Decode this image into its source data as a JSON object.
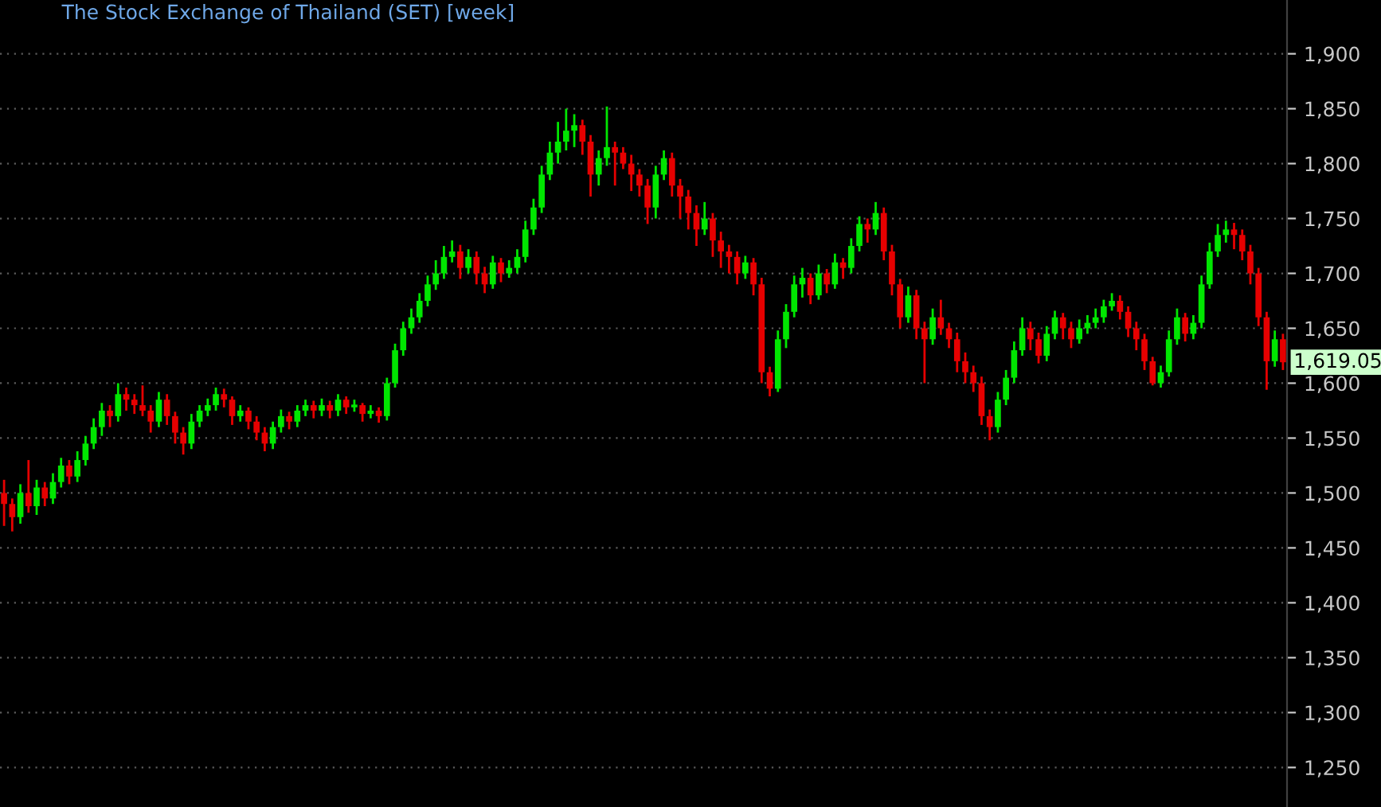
{
  "chart_data": {
    "type": "candlestick",
    "title": "The Stock Exchange of Thailand (SET) [week]",
    "categories": [
      null,
      null,
      null,
      null,
      null,
      null,
      null,
      null,
      null,
      null,
      null,
      null,
      null,
      null,
      null,
      null,
      null,
      null,
      null,
      null,
      null,
      null,
      null,
      null,
      null,
      null,
      null,
      null,
      null,
      null,
      null,
      null,
      null,
      null,
      null,
      null,
      null,
      null,
      null,
      null,
      null,
      null,
      null,
      null,
      null,
      null,
      null,
      null,
      null,
      null,
      null,
      null,
      null,
      null,
      null,
      null,
      null,
      null,
      null,
      null,
      null,
      null,
      null,
      null,
      null,
      null,
      null,
      null,
      null,
      null,
      null,
      null,
      null,
      null,
      null,
      null,
      null,
      null,
      null,
      null,
      null,
      null,
      null,
      null,
      null,
      null,
      null,
      null,
      null,
      null,
      null,
      null,
      null,
      null,
      null,
      null,
      null,
      null,
      null,
      null,
      null,
      null,
      null,
      null,
      null,
      null,
      null,
      null,
      null,
      null,
      null,
      null,
      null,
      null,
      null,
      null,
      null,
      null,
      null,
      null,
      null,
      null,
      null,
      null,
      null,
      null,
      null,
      null,
      null,
      null,
      null,
      null,
      null,
      null,
      null,
      null,
      null,
      null,
      null,
      null,
      null,
      null,
      null,
      null,
      null,
      null,
      null,
      null,
      null,
      null,
      null,
      null,
      null,
      null,
      null,
      null,
      null,
      null
    ],
    "ohlc": [
      [
        1500,
        1512,
        1470,
        1490
      ],
      [
        1490,
        1495,
        1465,
        1478
      ],
      [
        1478,
        1508,
        1472,
        1500
      ],
      [
        1500,
        1530,
        1482,
        1488
      ],
      [
        1488,
        1512,
        1480,
        1505
      ],
      [
        1505,
        1510,
        1488,
        1495
      ],
      [
        1495,
        1518,
        1490,
        1510
      ],
      [
        1510,
        1532,
        1505,
        1525
      ],
      [
        1525,
        1530,
        1508,
        1515
      ],
      [
        1515,
        1538,
        1510,
        1530
      ],
      [
        1530,
        1552,
        1525,
        1545
      ],
      [
        1545,
        1568,
        1540,
        1560
      ],
      [
        1560,
        1582,
        1552,
        1575
      ],
      [
        1575,
        1580,
        1560,
        1570
      ],
      [
        1570,
        1600,
        1565,
        1590
      ],
      [
        1590,
        1596,
        1575,
        1585
      ],
      [
        1585,
        1590,
        1572,
        1580
      ],
      [
        1580,
        1598,
        1570,
        1575
      ],
      [
        1575,
        1580,
        1555,
        1565
      ],
      [
        1565,
        1592,
        1560,
        1585
      ],
      [
        1585,
        1590,
        1562,
        1570
      ],
      [
        1570,
        1574,
        1545,
        1555
      ],
      [
        1555,
        1560,
        1535,
        1545
      ],
      [
        1545,
        1572,
        1540,
        1565
      ],
      [
        1565,
        1580,
        1560,
        1575
      ],
      [
        1575,
        1586,
        1570,
        1580
      ],
      [
        1580,
        1596,
        1575,
        1590
      ],
      [
        1590,
        1595,
        1578,
        1585
      ],
      [
        1585,
        1588,
        1562,
        1570
      ],
      [
        1570,
        1580,
        1565,
        1575
      ],
      [
        1575,
        1578,
        1558,
        1565
      ],
      [
        1565,
        1570,
        1548,
        1555
      ],
      [
        1555,
        1560,
        1538,
        1545
      ],
      [
        1545,
        1565,
        1540,
        1560
      ],
      [
        1560,
        1576,
        1555,
        1570
      ],
      [
        1570,
        1574,
        1558,
        1565
      ],
      [
        1565,
        1580,
        1560,
        1575
      ],
      [
        1575,
        1585,
        1570,
        1580
      ],
      [
        1580,
        1584,
        1568,
        1575
      ],
      [
        1575,
        1586,
        1570,
        1580
      ],
      [
        1580,
        1584,
        1568,
        1575
      ],
      [
        1575,
        1590,
        1570,
        1585
      ],
      [
        1585,
        1588,
        1572,
        1578
      ],
      [
        1578,
        1585,
        1574,
        1580
      ],
      [
        1580,
        1582,
        1565,
        1572
      ],
      [
        1572,
        1580,
        1568,
        1575
      ],
      [
        1575,
        1578,
        1564,
        1570
      ],
      [
        1570,
        1605,
        1566,
        1600
      ],
      [
        1600,
        1636,
        1596,
        1630
      ],
      [
        1630,
        1656,
        1625,
        1650
      ],
      [
        1650,
        1668,
        1645,
        1660
      ],
      [
        1660,
        1682,
        1655,
        1675
      ],
      [
        1675,
        1698,
        1670,
        1690
      ],
      [
        1690,
        1712,
        1685,
        1700
      ],
      [
        1700,
        1725,
        1695,
        1715
      ],
      [
        1715,
        1730,
        1710,
        1720
      ],
      [
        1720,
        1726,
        1695,
        1705
      ],
      [
        1705,
        1722,
        1700,
        1715
      ],
      [
        1715,
        1720,
        1690,
        1700
      ],
      [
        1700,
        1706,
        1682,
        1690
      ],
      [
        1690,
        1716,
        1686,
        1710
      ],
      [
        1710,
        1714,
        1692,
        1700
      ],
      [
        1700,
        1712,
        1696,
        1705
      ],
      [
        1705,
        1722,
        1700,
        1715
      ],
      [
        1715,
        1748,
        1710,
        1740
      ],
      [
        1740,
        1768,
        1735,
        1760
      ],
      [
        1760,
        1798,
        1755,
        1790
      ],
      [
        1790,
        1820,
        1785,
        1810
      ],
      [
        1810,
        1838,
        1800,
        1820
      ],
      [
        1820,
        1850,
        1812,
        1830
      ],
      [
        1830,
        1845,
        1815,
        1835
      ],
      [
        1835,
        1840,
        1808,
        1820
      ],
      [
        1820,
        1826,
        1770,
        1790
      ],
      [
        1790,
        1812,
        1780,
        1805
      ],
      [
        1805,
        1852,
        1798,
        1815
      ],
      [
        1815,
        1820,
        1780,
        1810
      ],
      [
        1810,
        1815,
        1795,
        1800
      ],
      [
        1800,
        1808,
        1775,
        1790
      ],
      [
        1790,
        1795,
        1770,
        1780
      ],
      [
        1780,
        1786,
        1745,
        1760
      ],
      [
        1760,
        1798,
        1750,
        1790
      ],
      [
        1790,
        1812,
        1785,
        1805
      ],
      [
        1805,
        1810,
        1770,
        1780
      ],
      [
        1780,
        1786,
        1750,
        1770
      ],
      [
        1770,
        1776,
        1740,
        1755
      ],
      [
        1755,
        1762,
        1725,
        1740
      ],
      [
        1740,
        1765,
        1735,
        1750
      ],
      [
        1750,
        1755,
        1715,
        1730
      ],
      [
        1730,
        1738,
        1705,
        1720
      ],
      [
        1720,
        1726,
        1700,
        1715
      ],
      [
        1715,
        1720,
        1690,
        1700
      ],
      [
        1700,
        1716,
        1695,
        1710
      ],
      [
        1710,
        1714,
        1680,
        1690
      ],
      [
        1690,
        1696,
        1600,
        1610
      ],
      [
        1610,
        1615,
        1588,
        1595
      ],
      [
        1595,
        1648,
        1592,
        1640
      ],
      [
        1640,
        1672,
        1632,
        1665
      ],
      [
        1665,
        1698,
        1660,
        1690
      ],
      [
        1690,
        1705,
        1678,
        1696
      ],
      [
        1696,
        1700,
        1672,
        1680
      ],
      [
        1680,
        1708,
        1676,
        1700
      ],
      [
        1700,
        1704,
        1682,
        1690
      ],
      [
        1690,
        1718,
        1686,
        1710
      ],
      [
        1710,
        1714,
        1695,
        1705
      ],
      [
        1705,
        1732,
        1700,
        1725
      ],
      [
        1725,
        1752,
        1720,
        1745
      ],
      [
        1745,
        1750,
        1728,
        1740
      ],
      [
        1740,
        1765,
        1735,
        1755
      ],
      [
        1755,
        1760,
        1712,
        1720
      ],
      [
        1720,
        1726,
        1680,
        1690
      ],
      [
        1690,
        1695,
        1650,
        1660
      ],
      [
        1660,
        1688,
        1655,
        1680
      ],
      [
        1680,
        1685,
        1640,
        1650
      ],
      [
        1650,
        1656,
        1600,
        1640
      ],
      [
        1640,
        1668,
        1635,
        1660
      ],
      [
        1660,
        1676,
        1644,
        1650
      ],
      [
        1650,
        1655,
        1632,
        1640
      ],
      [
        1640,
        1646,
        1610,
        1620
      ],
      [
        1620,
        1628,
        1600,
        1610
      ],
      [
        1610,
        1616,
        1592,
        1600
      ],
      [
        1600,
        1606,
        1562,
        1570
      ],
      [
        1570,
        1576,
        1548,
        1560
      ],
      [
        1560,
        1592,
        1555,
        1585
      ],
      [
        1585,
        1612,
        1580,
        1605
      ],
      [
        1605,
        1638,
        1600,
        1630
      ],
      [
        1630,
        1660,
        1625,
        1650
      ],
      [
        1650,
        1656,
        1630,
        1640
      ],
      [
        1640,
        1646,
        1618,
        1625
      ],
      [
        1625,
        1652,
        1620,
        1645
      ],
      [
        1645,
        1666,
        1640,
        1660
      ],
      [
        1660,
        1664,
        1640,
        1650
      ],
      [
        1650,
        1656,
        1632,
        1640
      ],
      [
        1640,
        1658,
        1636,
        1650
      ],
      [
        1650,
        1662,
        1645,
        1655
      ],
      [
        1655,
        1668,
        1650,
        1660
      ],
      [
        1660,
        1676,
        1655,
        1670
      ],
      [
        1670,
        1682,
        1666,
        1675
      ],
      [
        1675,
        1680,
        1658,
        1665
      ],
      [
        1665,
        1670,
        1642,
        1650
      ],
      [
        1650,
        1656,
        1630,
        1640
      ],
      [
        1640,
        1645,
        1612,
        1620
      ],
      [
        1620,
        1624,
        1598,
        1600
      ],
      [
        1600,
        1616,
        1596,
        1610
      ],
      [
        1610,
        1648,
        1606,
        1640
      ],
      [
        1640,
        1668,
        1635,
        1660
      ],
      [
        1660,
        1664,
        1638,
        1645
      ],
      [
        1645,
        1662,
        1640,
        1655
      ],
      [
        1655,
        1698,
        1650,
        1690
      ],
      [
        1690,
        1728,
        1686,
        1720
      ],
      [
        1720,
        1745,
        1715,
        1735
      ],
      [
        1735,
        1748,
        1728,
        1740
      ],
      [
        1740,
        1746,
        1722,
        1735
      ],
      [
        1735,
        1740,
        1712,
        1720
      ],
      [
        1720,
        1726,
        1690,
        1700
      ],
      [
        1700,
        1705,
        1652,
        1660
      ],
      [
        1660,
        1665,
        1594,
        1620
      ],
      [
        1620,
        1648,
        1615,
        1640
      ],
      [
        1640,
        1645,
        1612,
        1619.05
      ]
    ],
    "colors": [
      "#e60000",
      "#e60000",
      "#00e600",
      "#e60000",
      "#00e600",
      "#e60000",
      "#00e600",
      "#00e600",
      "#e60000",
      "#00e600",
      "#00e600",
      "#00e600",
      "#00e600",
      "#e60000",
      "#00e600",
      "#e60000",
      "#e60000",
      "#e60000",
      "#e60000",
      "#00e600",
      "#e60000",
      "#e60000",
      "#e60000",
      "#00e600",
      "#00e600",
      "#00e600",
      "#00e600",
      "#e60000",
      "#e60000",
      "#00e600",
      "#e60000",
      "#e60000",
      "#e60000",
      "#00e600",
      "#00e600",
      "#e60000",
      "#00e600",
      "#00e600",
      "#e60000",
      "#00e600",
      "#e60000",
      "#00e600",
      "#e60000",
      "#00e600",
      "#e60000",
      "#00e600",
      "#e60000",
      "#00e600",
      "#00e600",
      "#00e600",
      "#00e600",
      "#00e600",
      "#00e600",
      "#00e600",
      "#00e600",
      "#00e600",
      "#e60000",
      "#00e600",
      "#e60000",
      "#e60000",
      "#00e600",
      "#e60000",
      "#00e600",
      "#00e600",
      "#00e600",
      "#00e600",
      "#00e600",
      "#00e600",
      "#00e600",
      "#00e600",
      "#00e600",
      "#e60000",
      "#e60000",
      "#00e600",
      "#00e600",
      "#e60000",
      "#e60000",
      "#e60000",
      "#e60000",
      "#e60000",
      "#00e600",
      "#00e600",
      "#e60000",
      "#e60000",
      "#e60000",
      "#e60000",
      "#00e600",
      "#e60000",
      "#e60000",
      "#e60000",
      "#e60000",
      "#00e600",
      "#e60000",
      "#e60000",
      "#e60000",
      "#00e600",
      "#00e600",
      "#00e600",
      "#00e600",
      "#e60000",
      "#00e600",
      "#e60000",
      "#00e600",
      "#e60000",
      "#00e600",
      "#00e600",
      "#e60000",
      "#00e600",
      "#e60000",
      "#e60000",
      "#e60000",
      "#00e600",
      "#e60000",
      "#e60000",
      "#00e600",
      "#e60000",
      "#e60000",
      "#e60000",
      "#e60000",
      "#e60000",
      "#e60000",
      "#e60000",
      "#00e600",
      "#00e600",
      "#00e600",
      "#00e600",
      "#e60000",
      "#e60000",
      "#00e600",
      "#00e600",
      "#e60000",
      "#e60000",
      "#00e600",
      "#00e600",
      "#00e600",
      "#00e600",
      "#00e600",
      "#e60000",
      "#e60000",
      "#e60000",
      "#e60000",
      "#e60000",
      "#00e600",
      "#00e600",
      "#00e600",
      "#e60000",
      "#00e600",
      "#00e600",
      "#00e600",
      "#00e600",
      "#00e600",
      "#e60000",
      "#e60000",
      "#e60000",
      "#e60000",
      "#e60000",
      "#00e600",
      "#e60000"
    ],
    "ylim": [
      1214,
      1949
    ],
    "yticks": [
      {
        "value": 1250,
        "label": "1,250"
      },
      {
        "value": 1300,
        "label": "1,300"
      },
      {
        "value": 1350,
        "label": "1,350"
      },
      {
        "value": 1400,
        "label": "1,400"
      },
      {
        "value": 1450,
        "label": "1,450"
      },
      {
        "value": 1500,
        "label": "1,500"
      },
      {
        "value": 1550,
        "label": "1,550"
      },
      {
        "value": 1600,
        "label": "1,600"
      },
      {
        "value": 1650,
        "label": "1,650"
      },
      {
        "value": 1700,
        "label": "1,700"
      },
      {
        "value": 1750,
        "label": "1,750"
      },
      {
        "value": 1800,
        "label": "1,800"
      },
      {
        "value": 1850,
        "label": "1,850"
      },
      {
        "value": 1900,
        "label": "1,900"
      }
    ],
    "tick_labels": "y",
    "grid": "y",
    "annotations": [
      "1,619.05"
    ]
  }
}
